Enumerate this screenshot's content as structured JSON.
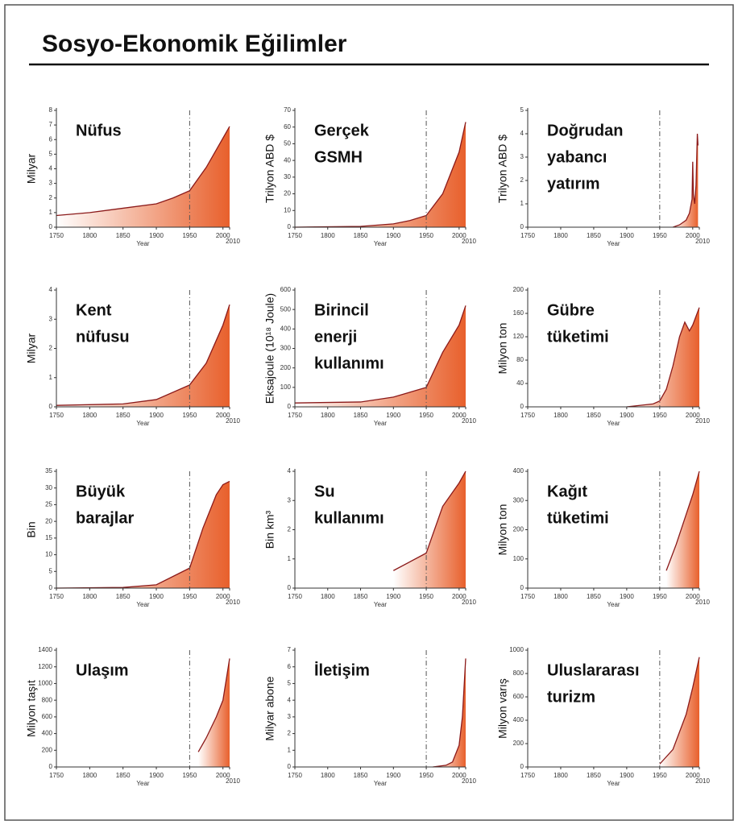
{
  "title": "Sosyo-Ekonomik Eğilimler",
  "chart_data": [
    {
      "type": "area",
      "title": [
        "Nüfus"
      ],
      "ylabel": "Milyar",
      "xlabel": "Year",
      "x": [
        1750,
        1800,
        1850,
        1900,
        1925,
        1950,
        1975,
        2000,
        2010
      ],
      "values": [
        0.8,
        1.0,
        1.3,
        1.6,
        2.0,
        2.5,
        4.1,
        6.1,
        6.9
      ],
      "xlim": [
        1750,
        2010
      ],
      "xticks": [
        1750,
        1800,
        1850,
        1900,
        1950,
        2000,
        2010
      ],
      "ylim": [
        0,
        8
      ],
      "yticks": [
        0,
        1,
        2,
        3,
        4,
        5,
        6,
        7,
        8
      ],
      "vline": 1950,
      "color": "#e8602c",
      "line_color": "#8b1a1a"
    },
    {
      "type": "area",
      "title": [
        "Gerçek",
        "GSMH"
      ],
      "ylabel": "Trilyon ABD $",
      "xlabel": "Year",
      "x": [
        1750,
        1850,
        1900,
        1925,
        1950,
        1975,
        2000,
        2010
      ],
      "values": [
        0,
        0.5,
        2,
        4,
        7,
        20,
        45,
        63
      ],
      "xlim": [
        1750,
        2010
      ],
      "xticks": [
        1750,
        1800,
        1850,
        1900,
        1950,
        2000,
        2010
      ],
      "ylim": [
        0,
        70
      ],
      "yticks": [
        0,
        10,
        20,
        30,
        40,
        50,
        60,
        70
      ],
      "vline": 1950,
      "color": "#e8602c",
      "line_color": "#8b1a1a"
    },
    {
      "type": "area",
      "title": [
        "Doğrudan",
        "yabancı",
        "yatırım"
      ],
      "ylabel": "Trilyon ABD $",
      "xlabel": "Year",
      "x": [
        1970,
        1980,
        1990,
        1995,
        1999,
        2000,
        2001,
        2003,
        2005,
        2007,
        2008
      ],
      "values": [
        0,
        0.1,
        0.3,
        0.6,
        1.2,
        2.8,
        1.4,
        1.0,
        1.8,
        4.0,
        3.5
      ],
      "xlim": [
        1750,
        2010
      ],
      "xticks": [
        1750,
        1800,
        1850,
        1900,
        1950,
        2000,
        2010
      ],
      "ylim": [
        0,
        5
      ],
      "yticks": [
        0,
        1,
        2,
        3,
        4,
        5
      ],
      "vline": 1950,
      "color": "#e8602c",
      "line_color": "#8b1a1a"
    },
    {
      "type": "area",
      "title": [
        "Kent",
        "nüfusu"
      ],
      "ylabel": "Milyar",
      "xlabel": "Year",
      "x": [
        1750,
        1850,
        1900,
        1950,
        1975,
        2000,
        2010
      ],
      "values": [
        0.05,
        0.1,
        0.25,
        0.75,
        1.5,
        2.8,
        3.5
      ],
      "xlim": [
        1750,
        2010
      ],
      "xticks": [
        1750,
        1800,
        1850,
        1900,
        1950,
        2000,
        2010
      ],
      "ylim": [
        0,
        4
      ],
      "yticks": [
        0,
        1,
        2,
        3,
        4
      ],
      "vline": 1950,
      "color": "#e8602c",
      "line_color": "#8b1a1a"
    },
    {
      "type": "area",
      "title": [
        "Birincil",
        "enerji",
        "kullanımı"
      ],
      "ylabel": "Eksajoule (10¹⁸ Joule)",
      "xlabel": "Year",
      "x": [
        1750,
        1850,
        1900,
        1950,
        1975,
        2000,
        2010
      ],
      "values": [
        20,
        25,
        50,
        100,
        280,
        420,
        520
      ],
      "xlim": [
        1750,
        2010
      ],
      "xticks": [
        1750,
        1800,
        1850,
        1900,
        1950,
        2000,
        2010
      ],
      "ylim": [
        0,
        600
      ],
      "yticks": [
        0,
        100,
        200,
        300,
        400,
        500,
        600
      ],
      "vline": 1950,
      "color": "#e8602c",
      "line_color": "#8b1a1a"
    },
    {
      "type": "area",
      "title": [
        "Gübre",
        "tüketimi"
      ],
      "ylabel": "Milyon ton",
      "xlabel": "Year",
      "x": [
        1900,
        1940,
        1950,
        1960,
        1970,
        1980,
        1988,
        1995,
        2000,
        2010
      ],
      "values": [
        0,
        5,
        10,
        30,
        70,
        120,
        145,
        130,
        140,
        170
      ],
      "xlim": [
        1750,
        2010
      ],
      "xticks": [
        1750,
        1800,
        1850,
        1900,
        1950,
        2000,
        2010
      ],
      "ylim": [
        0,
        200
      ],
      "yticks": [
        0,
        40,
        80,
        120,
        160,
        200
      ],
      "vline": 1950,
      "color": "#e8602c",
      "line_color": "#8b1a1a"
    },
    {
      "type": "area",
      "title": [
        "Büyük",
        "barajlar"
      ],
      "ylabel": "Bin",
      "xlabel": "Year",
      "x": [
        1750,
        1850,
        1900,
        1950,
        1970,
        1990,
        2000,
        2010
      ],
      "values": [
        0,
        0.2,
        1,
        6,
        18,
        28,
        31,
        32
      ],
      "xlim": [
        1750,
        2010
      ],
      "xticks": [
        1750,
        1800,
        1850,
        1900,
        1950,
        2000,
        2010
      ],
      "ylim": [
        0,
        35
      ],
      "yticks": [
        0,
        5,
        10,
        15,
        20,
        25,
        30,
        35
      ],
      "vline": 1950,
      "color": "#e8602c",
      "line_color": "#8b1a1a"
    },
    {
      "type": "area",
      "title": [
        "Su",
        "kullanımı"
      ],
      "ylabel": "Bin km³",
      "xlabel": "Year",
      "x": [
        1900,
        1950,
        1975,
        2000,
        2010
      ],
      "values": [
        0.6,
        1.2,
        2.8,
        3.6,
        4.0
      ],
      "xlim": [
        1750,
        2010
      ],
      "xticks": [
        1750,
        1800,
        1850,
        1900,
        1950,
        2000,
        2010
      ],
      "ylim": [
        0,
        4
      ],
      "yticks": [
        0,
        1,
        2,
        3,
        4
      ],
      "vline": 1950,
      "color": "#e8602c",
      "line_color": "#8b1a1a"
    },
    {
      "type": "area",
      "title": [
        "Kağıt",
        "tüketimi"
      ],
      "ylabel": "Milyon ton",
      "xlabel": "Year",
      "x": [
        1960,
        1975,
        2000,
        2010
      ],
      "values": [
        60,
        150,
        320,
        400
      ],
      "xlim": [
        1750,
        2010
      ],
      "xticks": [
        1750,
        1800,
        1850,
        1900,
        1950,
        2000,
        2010
      ],
      "ylim": [
        0,
        400
      ],
      "yticks": [
        0,
        100,
        200,
        300,
        400
      ],
      "vline": 1950,
      "color": "#e8602c",
      "line_color": "#8b1a1a"
    },
    {
      "type": "area",
      "title": [
        "Ulaşım"
      ],
      "ylabel": "Milyon taşıt",
      "xlabel": "Year",
      "x": [
        1963,
        1975,
        1990,
        2000,
        2010
      ],
      "values": [
        180,
        350,
        600,
        800,
        1300
      ],
      "xlim": [
        1750,
        2010
      ],
      "xticks": [
        1750,
        1800,
        1850,
        1900,
        1950,
        2000,
        2010
      ],
      "ylim": [
        0,
        1400
      ],
      "yticks": [
        0,
        200,
        400,
        600,
        800,
        1000,
        1200,
        1400
      ],
      "vline": 1950,
      "color": "#e8602c",
      "line_color": "#8b1a1a"
    },
    {
      "type": "area",
      "title": [
        "İletişim"
      ],
      "ylabel": "Milyar abone",
      "xlabel": "Year",
      "x": [
        1960,
        1980,
        1990,
        2000,
        2005,
        2010
      ],
      "values": [
        0,
        0.1,
        0.3,
        1.3,
        3,
        6.5
      ],
      "xlim": [
        1750,
        2010
      ],
      "xticks": [
        1750,
        1800,
        1850,
        1900,
        1950,
        2000,
        2010
      ],
      "ylim": [
        0,
        7
      ],
      "yticks": [
        0,
        1,
        2,
        3,
        4,
        5,
        6,
        7
      ],
      "vline": 1950,
      "color": "#e8602c",
      "line_color": "#8b1a1a"
    },
    {
      "type": "area",
      "title": [
        "Uluslararası",
        "turizm"
      ],
      "ylabel": "Milyon varış",
      "xlabel": "Year",
      "x": [
        1950,
        1970,
        1990,
        2000,
        2010
      ],
      "values": [
        25,
        150,
        450,
        680,
        940
      ],
      "xlim": [
        1750,
        2010
      ],
      "xticks": [
        1750,
        1800,
        1850,
        1900,
        1950,
        2000,
        2010
      ],
      "ylim": [
        0,
        1000
      ],
      "yticks": [
        0,
        200,
        400,
        600,
        800,
        1000
      ],
      "vline": 1950,
      "color": "#e8602c",
      "line_color": "#8b1a1a"
    }
  ]
}
